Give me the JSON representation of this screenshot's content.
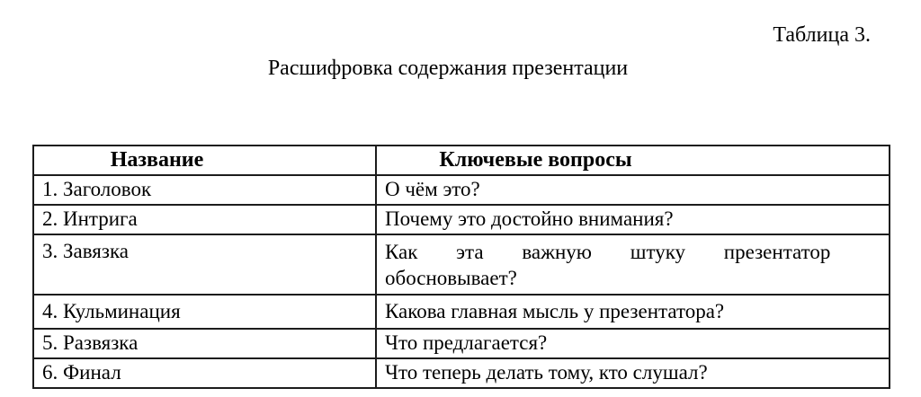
{
  "page": {
    "table_label": "Таблица 3.",
    "caption": "Расшифровка содержания презентации"
  },
  "table": {
    "headers": {
      "name": "Название",
      "questions": "Ключевые вопросы"
    },
    "rows": [
      {
        "name": "1. Заголовок",
        "question_lines": [
          "О чём это?"
        ]
      },
      {
        "name": "2. Интрига",
        "question_lines": [
          "Почему это достойно внимания?"
        ]
      },
      {
        "name": "3. Завязка",
        "question_lines": [
          "Как эта важную штуку презентатор",
          "обосновывает?"
        ]
      },
      {
        "name": "4. Кульминация",
        "question_lines": [
          "Какова главная мысль у презентатора?"
        ]
      },
      {
        "name": "5. Развязка",
        "question_lines": [
          "Что предлагается?"
        ]
      },
      {
        "name": "6. Финал",
        "question_lines": [
          "Что теперь делать тому, кто слушал?"
        ]
      }
    ]
  }
}
